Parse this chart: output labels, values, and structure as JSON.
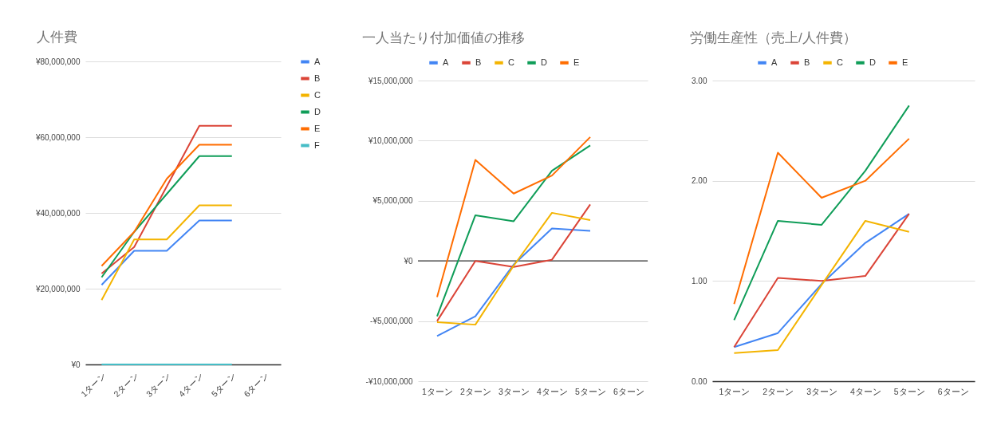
{
  "chart_data": [
    {
      "type": "line",
      "title": "人件費",
      "categories": [
        "1ターン",
        "2ターン",
        "3ターン",
        "4ターン",
        "5ターン",
        "6ターン"
      ],
      "series": [
        {
          "name": "A",
          "color": "#4285f4",
          "values": [
            21000000,
            30000000,
            30000000,
            38000000,
            38000000,
            null
          ]
        },
        {
          "name": "B",
          "color": "#db4437",
          "values": [
            24000000,
            31000000,
            47000000,
            63000000,
            63000000,
            null
          ]
        },
        {
          "name": "C",
          "color": "#f4b400",
          "values": [
            17000000,
            33000000,
            33000000,
            42000000,
            42000000,
            null
          ]
        },
        {
          "name": "D",
          "color": "#0f9d58",
          "values": [
            23000000,
            35000000,
            45000000,
            55000000,
            55000000,
            null
          ]
        },
        {
          "name": "E",
          "color": "#ff6d01",
          "values": [
            26000000,
            35000000,
            49000000,
            58000000,
            58000000,
            null
          ]
        },
        {
          "name": "F",
          "color": "#46bdc6",
          "values": [
            0,
            0,
            0,
            0,
            0,
            null
          ]
        }
      ],
      "ylim": [
        0,
        80000000
      ],
      "yticks": [
        {
          "value": 0,
          "label": "¥0"
        },
        {
          "value": 20000000,
          "label": "¥20,000,000"
        },
        {
          "value": 40000000,
          "label": "¥40,000,000"
        },
        {
          "value": 60000000,
          "label": "¥60,000,000"
        },
        {
          "value": 80000000,
          "label": "¥80,000,000"
        }
      ],
      "grid": "y",
      "legend": "right"
    },
    {
      "type": "line",
      "title": "一人当たり付加価値の推移",
      "categories": [
        "1ターン",
        "2ターン",
        "3ターン",
        "4ターン",
        "5ターン",
        "6ターン"
      ],
      "series": [
        {
          "name": "A",
          "color": "#4285f4",
          "values": [
            -6250000,
            -4600000,
            -300000,
            2700000,
            2500000,
            null
          ]
        },
        {
          "name": "B",
          "color": "#db4437",
          "values": [
            -5000000,
            0,
            -500000,
            100000,
            4700000,
            null
          ]
        },
        {
          "name": "C",
          "color": "#f4b400",
          "values": [
            -5100000,
            -5300000,
            -400000,
            4000000,
            3400000,
            null
          ]
        },
        {
          "name": "D",
          "color": "#0f9d58",
          "values": [
            -4600000,
            3800000,
            3300000,
            7500000,
            9600000,
            null
          ]
        },
        {
          "name": "E",
          "color": "#ff6d01",
          "values": [
            -3000000,
            8400000,
            5600000,
            7100000,
            10300000,
            null
          ]
        }
      ],
      "ylim": [
        -10000000,
        15000000
      ],
      "yticks": [
        {
          "value": -10000000,
          "label": "-¥10,000,000"
        },
        {
          "value": -5000000,
          "label": "-¥5,000,000"
        },
        {
          "value": 0,
          "label": "¥0"
        },
        {
          "value": 5000000,
          "label": "¥5,000,000"
        },
        {
          "value": 10000000,
          "label": "¥10,000,000"
        },
        {
          "value": 15000000,
          "label": "¥15,000,000"
        }
      ],
      "grid": "y",
      "legend": "top",
      "ref_lines": [
        {
          "axis": "y",
          "value": 0,
          "color": "#333333"
        }
      ]
    },
    {
      "type": "line",
      "title": "労働生産性（売上/人件費）",
      "categories": [
        "1ターン",
        "2ターン",
        "3ターン",
        "4ターン",
        "5ターン",
        "6ターン"
      ],
      "series": [
        {
          "name": "A",
          "color": "#4285f4",
          "values": [
            0.34,
            0.48,
            0.97,
            1.38,
            1.67,
            null
          ]
        },
        {
          "name": "B",
          "color": "#db4437",
          "values": [
            0.34,
            1.03,
            1.0,
            1.05,
            1.67,
            null
          ]
        },
        {
          "name": "C",
          "color": "#f4b400",
          "values": [
            0.28,
            0.31,
            0.96,
            1.6,
            1.49,
            null
          ]
        },
        {
          "name": "D",
          "color": "#0f9d58",
          "values": [
            0.61,
            1.6,
            1.56,
            2.1,
            2.75,
            null
          ]
        },
        {
          "name": "E",
          "color": "#ff6d01",
          "values": [
            0.77,
            2.28,
            1.83,
            2.0,
            2.42,
            null
          ]
        }
      ],
      "ylim": [
        0,
        3
      ],
      "yticks": [
        {
          "value": 0,
          "label": "0.00"
        },
        {
          "value": 1,
          "label": "1.00"
        },
        {
          "value": 2,
          "label": "2.00"
        },
        {
          "value": 3,
          "label": "3.00"
        }
      ],
      "grid": "y",
      "legend": "top"
    }
  ]
}
